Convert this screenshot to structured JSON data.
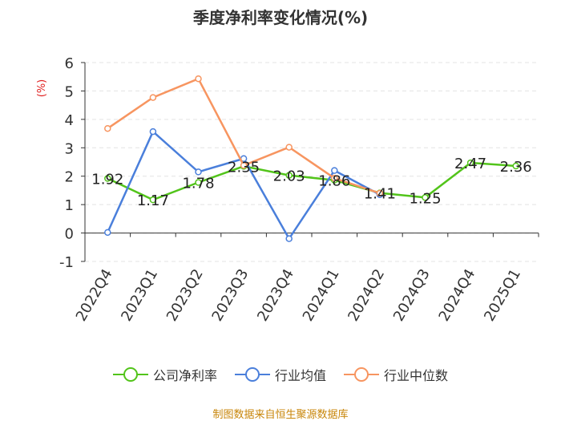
{
  "chart_data": {
    "type": "line",
    "title": "季度净利率变化情况(%)",
    "ylabel": "(%)",
    "ylim": [
      -1,
      6
    ],
    "yticks": [
      -1,
      0,
      1,
      2,
      3,
      4,
      5,
      6
    ],
    "categories": [
      "2022Q4",
      "2023Q1",
      "2023Q2",
      "2023Q3",
      "2023Q4",
      "2024Q1",
      "2024Q2",
      "2024Q3",
      "2024Q4",
      "2025Q1"
    ],
    "grid": true,
    "legend_position": "bottom",
    "series": [
      {
        "name": "公司净利率",
        "color": "#52c41a",
        "labels": true,
        "values": [
          1.92,
          1.17,
          1.78,
          2.35,
          2.03,
          1.86,
          1.41,
          1.25,
          2.47,
          2.36
        ]
      },
      {
        "name": "行业均值",
        "color": "#4a7fdb",
        "labels": false,
        "values": [
          0.02,
          3.57,
          2.15,
          2.62,
          -0.2,
          2.2,
          1.35,
          null,
          null,
          null
        ]
      },
      {
        "name": "行业中位数",
        "color": "#f79560",
        "labels": false,
        "values": [
          3.68,
          4.77,
          5.43,
          2.38,
          3.02,
          1.93,
          1.4,
          null,
          null,
          null
        ]
      }
    ]
  },
  "source": "制图数据来自恒生聚源数据库"
}
